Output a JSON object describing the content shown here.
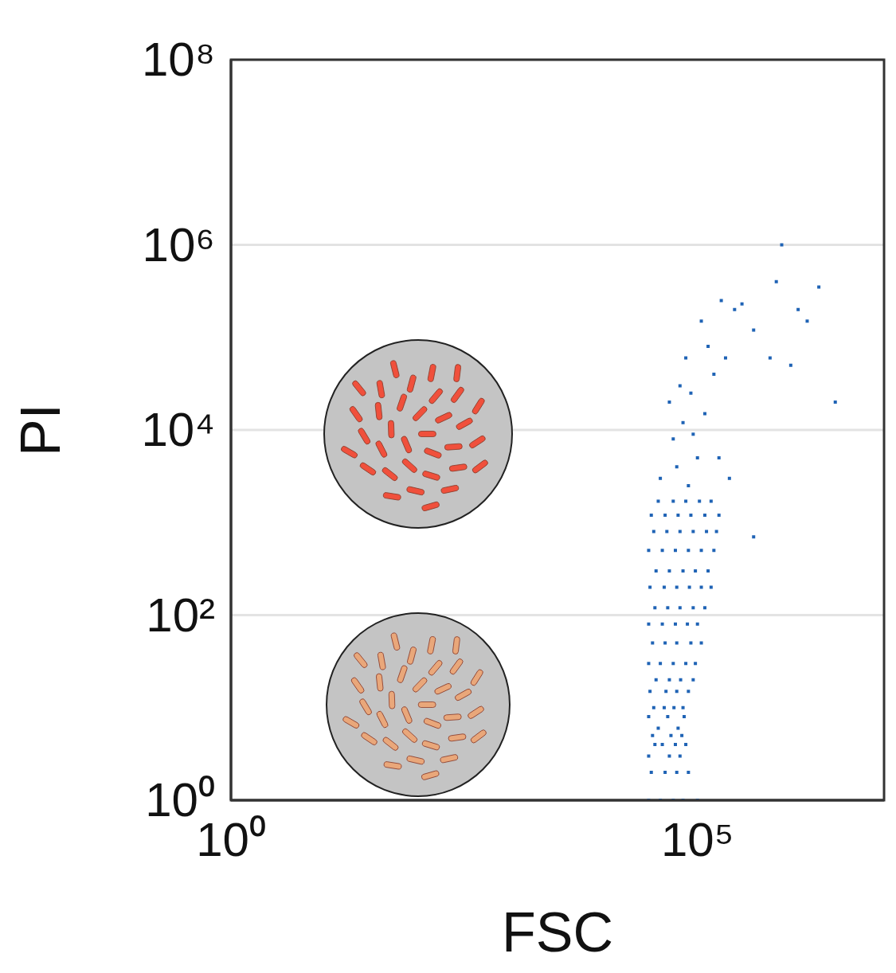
{
  "chart_data": {
    "type": "scatter",
    "x_label": "FSC",
    "y_label": "PI",
    "log": true,
    "grid": true,
    "color": "#1f63b5",
    "marker": "square",
    "xlim": [
      1,
      10000000
    ],
    "ylim": [
      1,
      100000000
    ],
    "xticks": [
      {
        "value": 1,
        "label": "10⁰"
      },
      {
        "value": 100000,
        "label": "10⁵"
      }
    ],
    "yticks": [
      {
        "value": 1,
        "label": "10⁰"
      },
      {
        "value": 100,
        "label": "10²"
      },
      {
        "value": 10000,
        "label": "10⁴"
      },
      {
        "value": 1000000,
        "label": "10⁶"
      },
      {
        "value": 100000000,
        "label": "10⁸"
      }
    ],
    "x": [
      30000,
      40000,
      55000,
      70000,
      100000,
      32000,
      45000,
      60000,
      80000,
      30000,
      50000,
      65000,
      35000,
      42000,
      58000,
      75000,
      33000,
      52000,
      68000,
      38000,
      62000,
      30000,
      48000,
      72000,
      34000,
      44000,
      56000,
      70000,
      31000,
      46000,
      60000,
      80000,
      36000,
      50000,
      66000,
      90000,
      30000,
      40000,
      55000,
      75000,
      95000,
      33000,
      45000,
      60000,
      85000,
      110000,
      30000,
      42000,
      58000,
      78000,
      100000,
      35000,
      48000,
      65000,
      90000,
      120000,
      31000,
      44000,
      60000,
      82000,
      110000,
      140000,
      36000,
      50000,
      70000,
      95000,
      130000,
      30000,
      42000,
      58000,
      80000,
      110000,
      150000,
      34000,
      47000,
      65000,
      90000,
      125000,
      160000,
      32000,
      45000,
      62000,
      85000,
      120000,
      170000,
      38000,
      55000,
      75000,
      105000,
      140000,
      40000,
      60000,
      80000,
      100000,
      55000,
      70000,
      50000,
      90000,
      65000,
      85000,
      120000,
      150000,
      200000,
      250000,
      300000,
      180000,
      400000,
      600000,
      1000000,
      1500000,
      2000000,
      800000,
      3000000,
      700000,
      1200000,
      130000,
      110000,
      75000,
      170000,
      220000,
      400000
    ],
    "values": [
      1,
      1,
      1,
      1,
      1,
      2,
      2,
      2,
      2,
      3,
      3,
      3,
      4,
      4,
      4,
      4,
      5,
      5,
      5,
      6,
      6,
      8,
      8,
      8,
      10,
      10,
      10,
      10,
      15,
      15,
      15,
      15,
      20,
      20,
      20,
      20,
      30,
      30,
      30,
      30,
      30,
      50,
      50,
      50,
      50,
      50,
      80,
      80,
      80,
      80,
      80,
      120,
      120,
      120,
      120,
      120,
      200,
      200,
      200,
      200,
      200,
      200,
      300,
      300,
      300,
      300,
      300,
      500,
      500,
      500,
      500,
      500,
      500,
      800,
      800,
      800,
      800,
      800,
      800,
      1200,
      1200,
      1200,
      1200,
      1200,
      1200,
      1700,
      1700,
      1700,
      1700,
      1700,
      3000,
      4000,
      2500,
      5000,
      8000,
      12000,
      20000,
      9000,
      30000,
      25000,
      15000,
      40000,
      60000,
      200000,
      230000,
      250000,
      120000,
      60000,
      50000,
      150000,
      350000,
      1000000,
      20000,
      400000,
      200000,
      80000,
      150000,
      60000,
      5000,
      3000,
      700
    ]
  }
}
